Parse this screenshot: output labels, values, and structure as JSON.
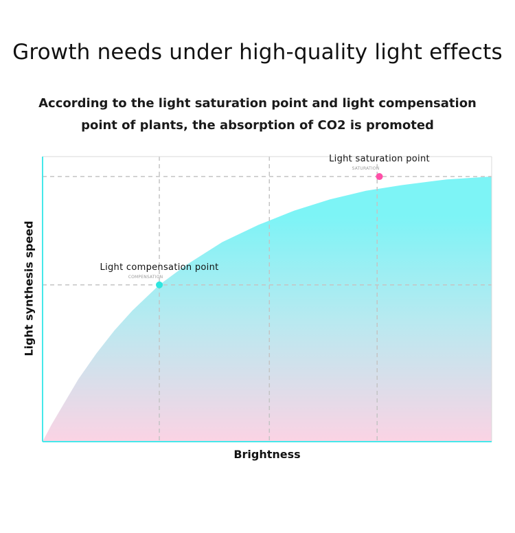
{
  "header": {
    "title": "Growth needs under high-quality light effects",
    "subtitle_line1": "According to the light saturation point and light compensation",
    "subtitle_line2": "point of plants, the absorption of CO2 is promoted"
  },
  "chart_data": {
    "type": "area",
    "title": "",
    "xlabel": "Brightness",
    "ylabel": "Light synthesis speed",
    "xlim": [
      0,
      100
    ],
    "ylim": [
      0,
      100
    ],
    "grid": true,
    "x": [
      0,
      2,
      5,
      8,
      12,
      16,
      20,
      26,
      32,
      40,
      48,
      56,
      64,
      72,
      80,
      90,
      100
    ],
    "y": [
      0,
      6,
      14,
      22,
      31,
      39,
      46,
      55,
      62,
      70,
      76,
      81,
      85,
      88,
      90,
      92,
      93
    ],
    "points": [
      {
        "name": "compensation",
        "label": "Light compensation point",
        "sublabel": "COMPENSATION",
        "x": 26,
        "y": 55,
        "color": "#2ee6df"
      },
      {
        "name": "saturation",
        "label": "Light saturation point",
        "sublabel": "SATURATION",
        "x": 75,
        "y": 93,
        "color": "#ff4fa8"
      }
    ],
    "colors": {
      "axis": "#45e8ea",
      "fill_top": "#7df4f6",
      "fill_bottom": "#fbd3e4",
      "grid": "#c4c4c4"
    }
  }
}
